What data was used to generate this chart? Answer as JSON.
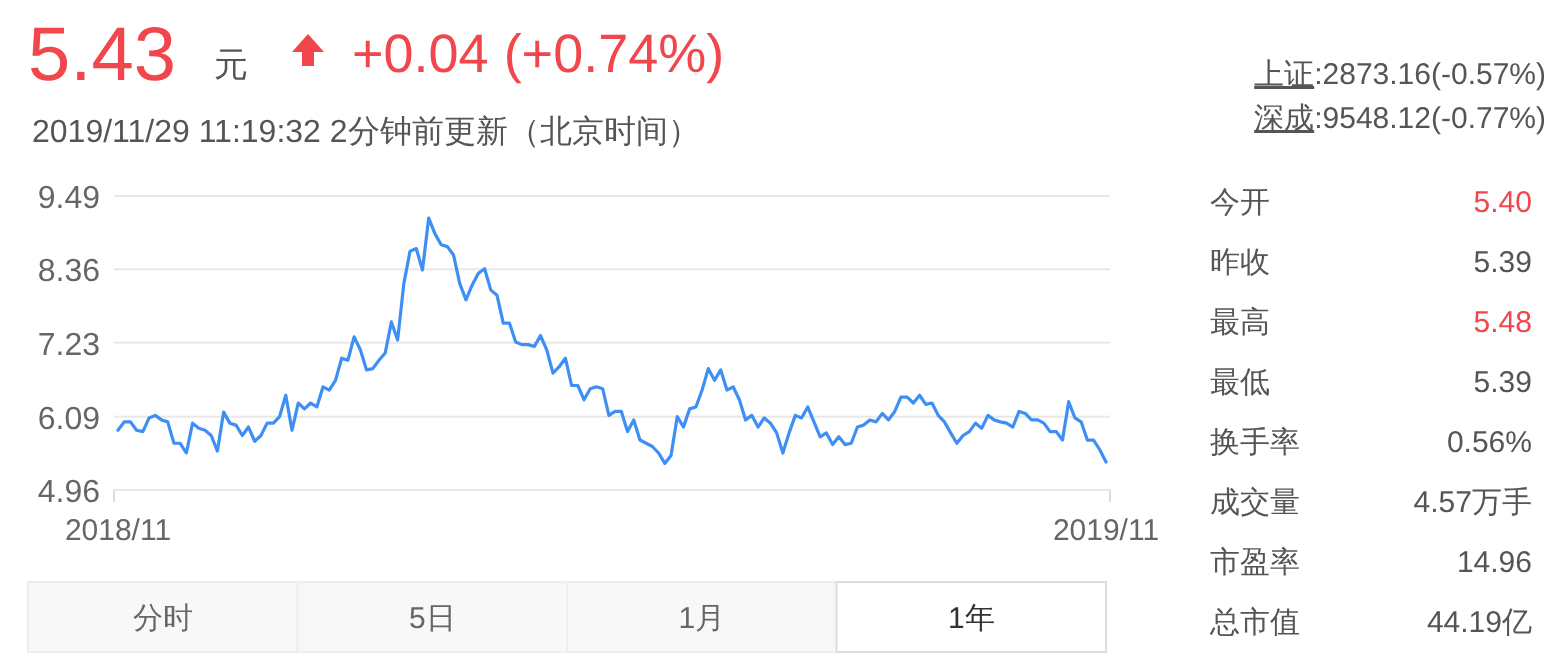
{
  "chart_data": {
    "type": "line",
    "categories": [
      "2018/11",
      null,
      null,
      null,
      null,
      null,
      null,
      null,
      null,
      null,
      null,
      null,
      null,
      null,
      null,
      null,
      null,
      null,
      null,
      null,
      null,
      null,
      null,
      null,
      null,
      null,
      null,
      null,
      null,
      null,
      null,
      null,
      null,
      null,
      null,
      null,
      null,
      null,
      null,
      null,
      null,
      null,
      null,
      null,
      null,
      null,
      null,
      null,
      null,
      null,
      null,
      null,
      null,
      null,
      null,
      null,
      null,
      null,
      null,
      null,
      null,
      null,
      null,
      null,
      null,
      null,
      null,
      null,
      null,
      null,
      null,
      null,
      null,
      null,
      null,
      null,
      null,
      null,
      null,
      null,
      null,
      null,
      null,
      null,
      null,
      null,
      null,
      null,
      null,
      null,
      null,
      null,
      null,
      null,
      null,
      null,
      null,
      null,
      null,
      null,
      null,
      null,
      null,
      null,
      null,
      null,
      null,
      null,
      null,
      null,
      null,
      null,
      null,
      null,
      null,
      null,
      null,
      null,
      null,
      null,
      null,
      null,
      null,
      null,
      null,
      null,
      null,
      null,
      null,
      null,
      null,
      null,
      null,
      null,
      null,
      null,
      null,
      null,
      null,
      null,
      null,
      null,
      null,
      null,
      null,
      null,
      null,
      null,
      null,
      null,
      null,
      null,
      null,
      null,
      null,
      null,
      null,
      null,
      null,
      "2019/11"
    ],
    "series": [
      {
        "color": "#3d8ff5",
        "values": [
          5.88,
          6.01,
          6.01,
          5.88,
          5.86,
          6.07,
          6.11,
          6.04,
          6.01,
          5.68,
          5.68,
          5.53,
          5.99,
          5.91,
          5.88,
          5.8,
          5.56,
          6.16,
          5.99,
          5.96,
          5.8,
          5.93,
          5.71,
          5.8,
          5.99,
          5.99,
          6.09,
          6.42,
          5.88,
          6.3,
          6.21,
          6.3,
          6.24,
          6.55,
          6.5,
          6.65,
          6.99,
          6.96,
          7.32,
          7.12,
          6.81,
          6.83,
          6.96,
          7.07,
          7.55,
          7.27,
          8.14,
          8.64,
          8.68,
          8.35,
          9.15,
          8.91,
          8.74,
          8.71,
          8.58,
          8.14,
          7.89,
          8.12,
          8.3,
          8.37,
          8.04,
          7.96,
          7.53,
          7.53,
          7.24,
          7.2,
          7.2,
          7.17,
          7.34,
          7.12,
          6.76,
          6.86,
          6.99,
          6.57,
          6.57,
          6.35,
          6.52,
          6.55,
          6.52,
          6.11,
          6.17,
          6.17,
          5.86,
          6.04,
          5.73,
          5.68,
          5.63,
          5.53,
          5.37,
          5.49,
          6.09,
          5.93,
          6.21,
          6.24,
          6.5,
          6.83,
          6.65,
          6.81,
          6.5,
          6.55,
          6.35,
          6.04,
          6.11,
          5.93,
          6.07,
          5.99,
          5.84,
          5.53,
          5.84,
          6.11,
          6.07,
          6.24,
          6.01,
          5.78,
          5.84,
          5.66,
          5.78,
          5.66,
          5.68,
          5.93,
          5.96,
          6.04,
          6.01,
          6.14,
          6.04,
          6.17,
          6.39,
          6.39,
          6.3,
          6.42,
          6.28,
          6.3,
          6.11,
          6.01,
          5.84,
          5.68,
          5.8,
          5.86,
          5.99,
          5.91,
          6.11,
          6.04,
          6.01,
          5.99,
          5.93,
          6.17,
          6.14,
          6.04,
          6.04,
          5.99,
          5.86,
          5.86,
          5.73,
          6.32,
          6.07,
          6.01,
          5.73,
          5.73,
          5.58,
          5.39
        ]
      }
    ],
    "ylim": [
      4.96,
      9.49
    ],
    "yticks": [
      4.96,
      6.09,
      7.23,
      8.36,
      9.49
    ],
    "grid": "y",
    "marker": "none",
    "line_style": "solid",
    "annotations": [
      "5.43",
      "元",
      "+0.04 (+0.74%)",
      "2019/11/29 11:19:32 2分钟前更新（北京时间）",
      "上证:2873.16(-0.57%)",
      "深成:9548.12(-0.77%)",
      "今开",
      "5.40",
      "昨收",
      "5.39",
      "最高",
      "5.48",
      "最低",
      "5.39",
      "换手率",
      "0.56%",
      "成交量",
      "4.57万手",
      "市盈率",
      "14.96",
      "总市值",
      "44.19亿",
      "分时",
      "5日",
      "1月",
      "1年"
    ]
  }
}
